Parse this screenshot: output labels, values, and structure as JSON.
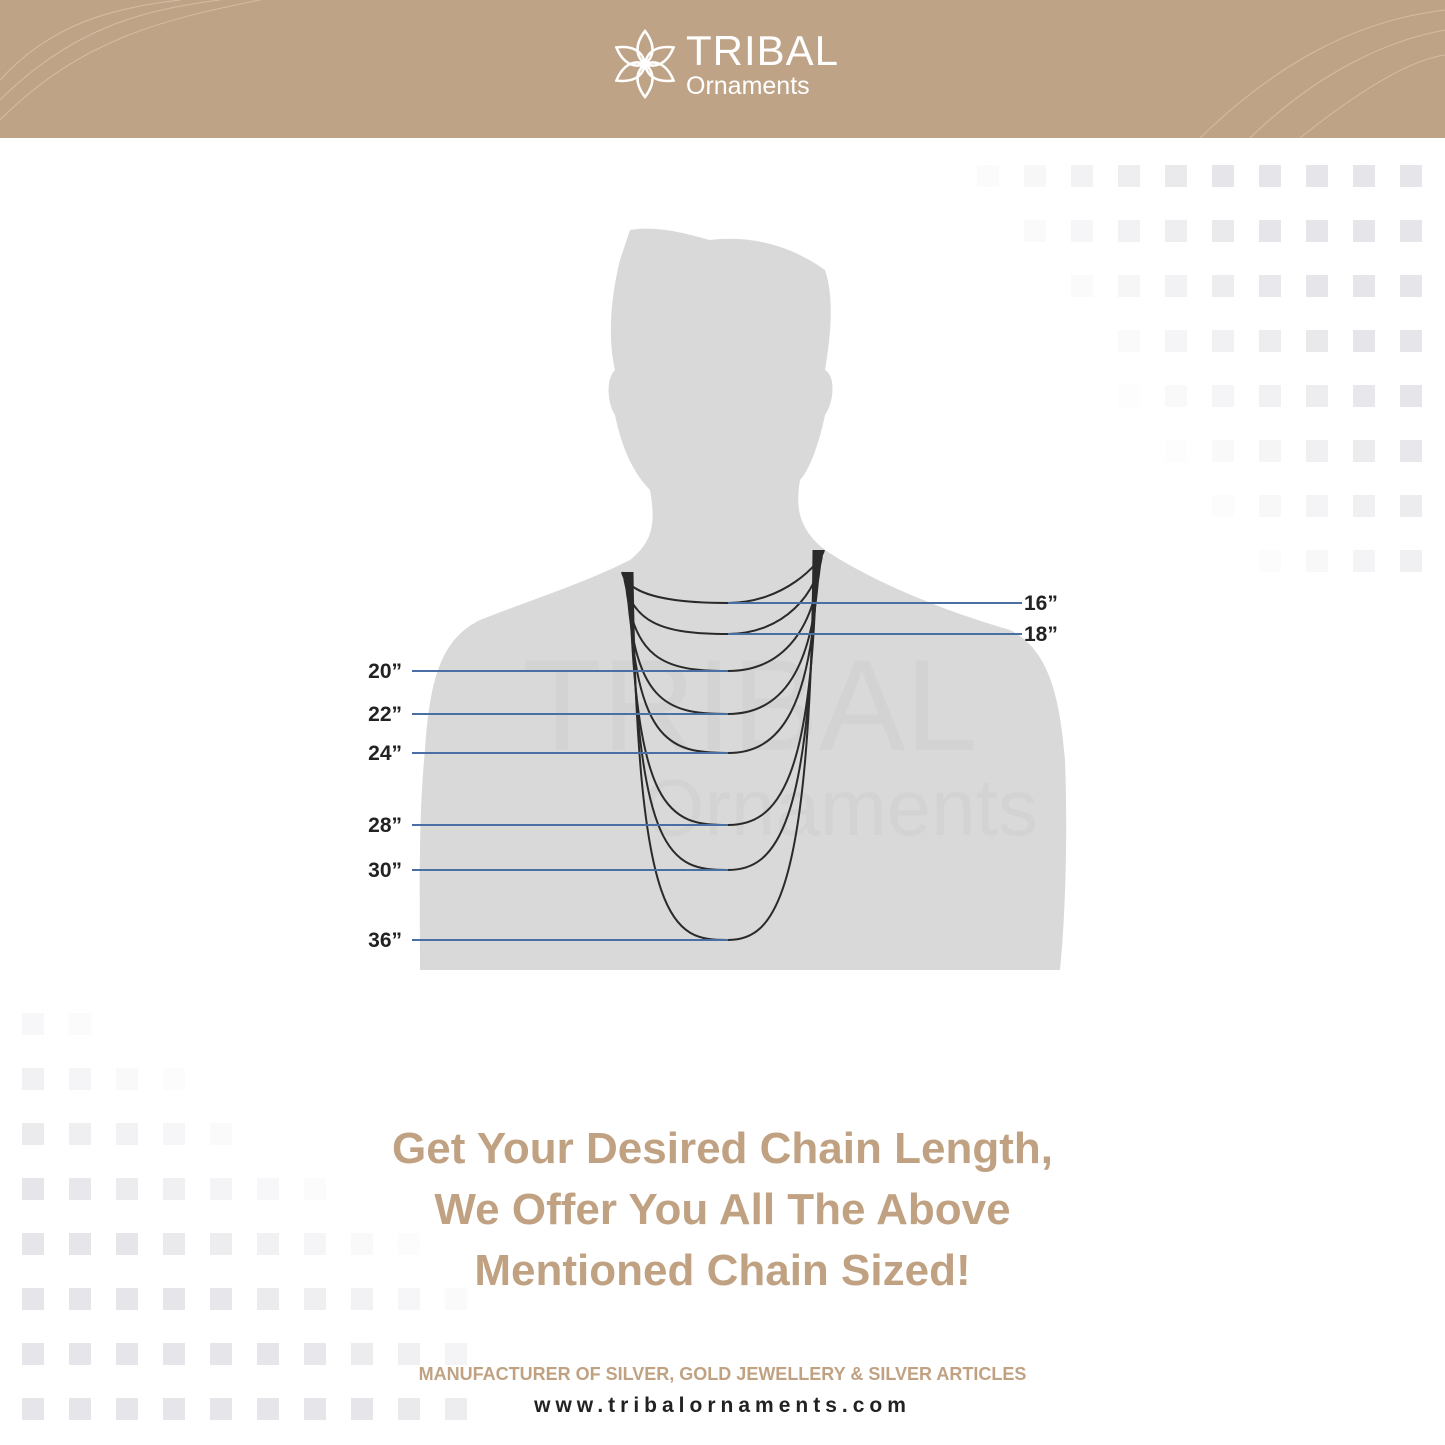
{
  "brand": {
    "name": "TRIBAL",
    "subtitle": "Ornaments",
    "color": "#bfa386"
  },
  "diagram": {
    "chain_lengths_right": [
      "16”",
      "18”"
    ],
    "chain_lengths_left": [
      "20”",
      "22”",
      "24”",
      "28”",
      "30”",
      "36”"
    ],
    "line_color": "#4a6fa5",
    "watermark": "TRIBAL Ornaments"
  },
  "headline": {
    "line1": "Get Your Desired Chain Length,",
    "line2": "We Offer You All The Above",
    "line3": "Mentioned Chain Sized!"
  },
  "footer": {
    "tagline": "MANUFACTURER OF SILVER, GOLD JEWELLERY & SILVER ARTICLES",
    "url": "www.tribalornaments.com"
  }
}
